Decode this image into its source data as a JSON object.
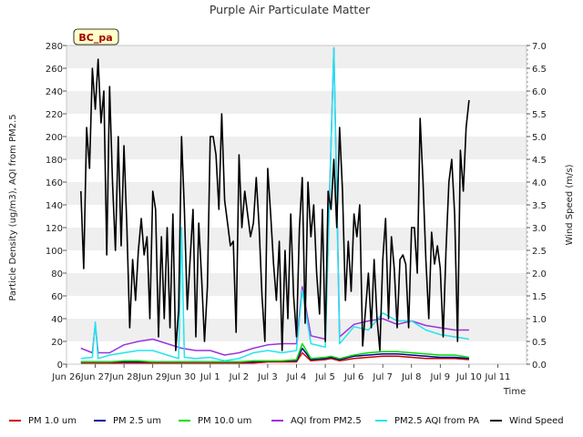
{
  "chart_data": {
    "type": "line",
    "title": "Purple Air Particulate Matter",
    "site_label": "BC_pa",
    "xlabel": "Time",
    "ylabel": "Particle Density (ug/m3), AQI from PM2.5",
    "y2label": "Wind Speed (m/s)",
    "ylim": [
      0,
      280
    ],
    "y2lim": [
      0,
      7.0
    ],
    "xlim": [
      0,
      16
    ],
    "x_ticks": [
      {
        "x": 0,
        "label": "Jun 26"
      },
      {
        "x": 1,
        "label": "Jun 27"
      },
      {
        "x": 2,
        "label": "Jun 28"
      },
      {
        "x": 3,
        "label": "Jun 29"
      },
      {
        "x": 4,
        "label": "Jun 30"
      },
      {
        "x": 5,
        "label": "Jul 1"
      },
      {
        "x": 6,
        "label": "Jul 2"
      },
      {
        "x": 7,
        "label": "Jul 3"
      },
      {
        "x": 8,
        "label": "Jul 4"
      },
      {
        "x": 9,
        "label": "Jul 5"
      },
      {
        "x": 10,
        "label": "Jul 6"
      },
      {
        "x": 11,
        "label": "Jul 7"
      },
      {
        "x": 12,
        "label": "Jul 8"
      },
      {
        "x": 13,
        "label": "Jul 9"
      },
      {
        "x": 14,
        "label": "Jul 10"
      },
      {
        "x": 15,
        "label": "Jul 11"
      }
    ],
    "y_ticks": [
      0,
      20,
      40,
      60,
      80,
      100,
      120,
      140,
      160,
      180,
      200,
      220,
      240,
      260,
      280
    ],
    "y2_ticks": [
      0.0,
      0.5,
      1.0,
      1.5,
      2.0,
      2.5,
      3.0,
      3.5,
      4.0,
      4.5,
      5.0,
      5.5,
      6.0,
      6.5,
      7.0
    ],
    "grid": "horizontal bands",
    "legend_position": "bottom",
    "series": [
      {
        "name": "PM 1.0 um",
        "color": "#cc0000",
        "axis": "left",
        "x": [
          0.5,
          1,
          1.5,
          2,
          2.5,
          3,
          3.5,
          4,
          4.5,
          5,
          5.5,
          6,
          6.5,
          7,
          7.5,
          8,
          8.2,
          8.5,
          9,
          9.2,
          9.5,
          10,
          10.5,
          11,
          11.5,
          12,
          12.5,
          13,
          13.5,
          14
        ],
        "y": [
          1,
          1,
          1,
          1,
          1,
          1,
          1,
          1,
          1,
          1,
          1,
          1,
          1,
          2,
          2,
          2,
          10,
          3,
          4,
          5,
          3,
          5,
          6,
          7,
          7,
          6,
          5,
          5,
          5,
          4
        ]
      },
      {
        "name": "PM 2.5 um",
        "color": "#000099",
        "axis": "left",
        "x": [
          0.5,
          1,
          1.5,
          2,
          2.5,
          3,
          3.5,
          4,
          4.5,
          5,
          5.5,
          6,
          6.5,
          7,
          7.5,
          8,
          8.2,
          8.5,
          9,
          9.2,
          9.5,
          10,
          10.5,
          11,
          11.5,
          12,
          12.5,
          13,
          13.5,
          14
        ],
        "y": [
          2,
          2,
          2,
          2,
          2,
          2,
          2,
          2,
          2,
          2,
          2,
          2,
          2,
          3,
          3,
          3,
          14,
          4,
          5,
          6,
          4,
          7,
          8,
          9,
          9,
          8,
          7,
          6,
          6,
          5
        ]
      },
      {
        "name": "PM 10.0 um",
        "color": "#00dd00",
        "axis": "left",
        "x": [
          0.5,
          1,
          1.5,
          2,
          2.5,
          3,
          3.5,
          4,
          4.5,
          5,
          5.5,
          6,
          6.5,
          7,
          7.5,
          8,
          8.2,
          8.5,
          9,
          9.2,
          9.5,
          10,
          10.5,
          11,
          11.5,
          12,
          12.5,
          13,
          13.5,
          14
        ],
        "y": [
          2,
          2,
          2,
          3,
          3,
          2,
          2,
          2,
          2,
          2,
          2,
          2,
          3,
          3,
          3,
          4,
          18,
          5,
          6,
          7,
          5,
          8,
          10,
          11,
          11,
          10,
          9,
          8,
          8,
          6
        ]
      },
      {
        "name": "AQI from PM2.5",
        "color": "#9933dd",
        "axis": "left",
        "x": [
          0.5,
          0.9,
          1,
          1.1,
          1.5,
          2,
          2.5,
          3,
          3.5,
          4,
          4.5,
          5,
          5.5,
          6,
          6.5,
          7,
          7.5,
          8,
          8.2,
          8.5,
          9,
          9.3,
          9.5,
          10,
          10.5,
          11,
          11.5,
          12,
          12.5,
          13,
          13.5,
          14
        ],
        "y": [
          14,
          10,
          35,
          10,
          10,
          17,
          20,
          22,
          18,
          14,
          12,
          12,
          8,
          10,
          14,
          17,
          18,
          18,
          68,
          25,
          22,
          278,
          24,
          35,
          38,
          40,
          35,
          38,
          34,
          32,
          30,
          30
        ]
      },
      {
        "name": "PM2.5 AQI from PA",
        "color": "#22e5ee",
        "axis": "left",
        "x": [
          0.5,
          0.9,
          1,
          1.1,
          1.5,
          2,
          2.5,
          3,
          3.5,
          3.9,
          4,
          4.1,
          4.5,
          5,
          5.5,
          6,
          6.5,
          7,
          7.5,
          8,
          8.2,
          8.5,
          9,
          9.3,
          9.5,
          10,
          10.5,
          11,
          11.5,
          12,
          12.5,
          13,
          13.5,
          14
        ],
        "y": [
          5,
          6,
          37,
          5,
          8,
          10,
          12,
          12,
          8,
          5,
          120,
          6,
          5,
          6,
          3,
          5,
          10,
          12,
          10,
          12,
          65,
          18,
          15,
          278,
          18,
          33,
          30,
          45,
          38,
          38,
          30,
          26,
          24,
          22
        ]
      },
      {
        "name": "Wind Speed",
        "color": "#000000",
        "axis": "right",
        "x": [
          0.5,
          0.6,
          0.7,
          0.8,
          0.9,
          1,
          1.1,
          1.2,
          1.3,
          1.4,
          1.5,
          1.6,
          1.7,
          1.8,
          1.9,
          2,
          2.1,
          2.2,
          2.3,
          2.4,
          2.5,
          2.6,
          2.7,
          2.8,
          2.9,
          3,
          3.1,
          3.2,
          3.3,
          3.4,
          3.5,
          3.6,
          3.7,
          3.8,
          3.9,
          4,
          4.1,
          4.2,
          4.3,
          4.4,
          4.5,
          4.6,
          4.7,
          4.8,
          4.9,
          5,
          5.1,
          5.2,
          5.3,
          5.4,
          5.5,
          5.6,
          5.7,
          5.8,
          5.9,
          6,
          6.1,
          6.2,
          6.3,
          6.4,
          6.5,
          6.6,
          6.7,
          6.8,
          6.9,
          7,
          7.1,
          7.2,
          7.3,
          7.4,
          7.5,
          7.6,
          7.7,
          7.8,
          7.9,
          8,
          8.1,
          8.2,
          8.3,
          8.4,
          8.5,
          8.6,
          8.7,
          8.8,
          8.9,
          9,
          9.1,
          9.2,
          9.3,
          9.4,
          9.5,
          9.6,
          9.7,
          9.8,
          9.9,
          10,
          10.1,
          10.2,
          10.3,
          10.4,
          10.5,
          10.6,
          10.7,
          10.8,
          10.9,
          11,
          11.1,
          11.2,
          11.3,
          11.4,
          11.5,
          11.6,
          11.7,
          11.8,
          11.9,
          12,
          12.1,
          12.2,
          12.3,
          12.4,
          12.5,
          12.6,
          12.7,
          12.8,
          12.9,
          13,
          13.1,
          13.2,
          13.3,
          13.4,
          13.5,
          13.6,
          13.7,
          13.8,
          13.9,
          14
        ],
        "y": [
          3.8,
          2.1,
          5.2,
          4.3,
          6.5,
          5.6,
          6.7,
          5.3,
          6.0,
          2.4,
          6.1,
          4.0,
          2.5,
          5.0,
          2.6,
          4.8,
          3.0,
          0.8,
          2.3,
          1.4,
          2.5,
          3.2,
          2.4,
          2.8,
          1.0,
          3.8,
          3.4,
          0.6,
          2.8,
          1.0,
          3.0,
          0.8,
          3.3,
          0.3,
          1.2,
          5.0,
          3.4,
          1.2,
          2.3,
          3.4,
          0.6,
          3.1,
          1.9,
          0.5,
          1.7,
          5.0,
          5.0,
          4.6,
          3.4,
          5.5,
          3.6,
          3.1,
          2.6,
          2.7,
          0.7,
          4.6,
          3.0,
          3.8,
          3.3,
          2.8,
          3.1,
          4.1,
          3.0,
          1.5,
          0.5,
          4.3,
          3.3,
          2.2,
          1.4,
          2.7,
          0.3,
          2.5,
          1.0,
          3.3,
          1.5,
          0.6,
          3.0,
          4.1,
          0.9,
          4.0,
          2.8,
          3.5,
          2.0,
          1.1,
          3.4,
          0.5,
          3.8,
          3.4,
          4.5,
          3.0,
          5.2,
          3.8,
          1.4,
          2.7,
          1.6,
          3.3,
          2.8,
          3.5,
          0.4,
          1.2,
          2.0,
          0.8,
          2.3,
          1.0,
          0.3,
          2.3,
          3.2,
          1.0,
          2.8,
          2.1,
          0.8,
          2.3,
          2.4,
          2.2,
          0.8,
          3.0,
          3.0,
          2.0,
          5.4,
          4.0,
          2.3,
          1.0,
          2.9,
          2.2,
          2.6,
          2.1,
          0.6,
          2.5,
          4.0,
          4.5,
          3.3,
          0.5,
          4.7,
          3.8,
          5.2,
          5.8
        ]
      }
    ]
  }
}
